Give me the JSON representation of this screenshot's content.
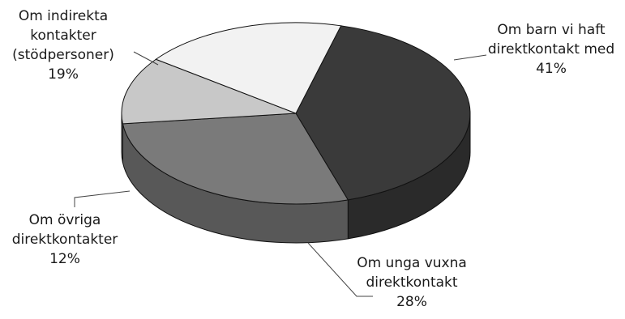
{
  "chart_data": {
    "type": "pie",
    "style": "3d",
    "legend": "none",
    "title": "",
    "slices": [
      {
        "label_lines": [
          "Om barn vi haft",
          "direktkontakt med"
        ],
        "percent_label": "41%",
        "value": 41,
        "color": "#3a3a3a"
      },
      {
        "label_lines": [
          "Om unga vuxna",
          "direktkontakt"
        ],
        "percent_label": "28%",
        "value": 28,
        "color": "#7a7a7a"
      },
      {
        "label_lines": [
          "Om övriga",
          "direktkontakter"
        ],
        "percent_label": "12%",
        "value": 12,
        "color": "#c8c8c8"
      },
      {
        "label_lines": [
          "Om indirekta",
          "kontakter",
          "(stödpersoner)"
        ],
        "percent_label": "19%",
        "value": 19,
        "color": "#f2f2f2"
      }
    ]
  }
}
